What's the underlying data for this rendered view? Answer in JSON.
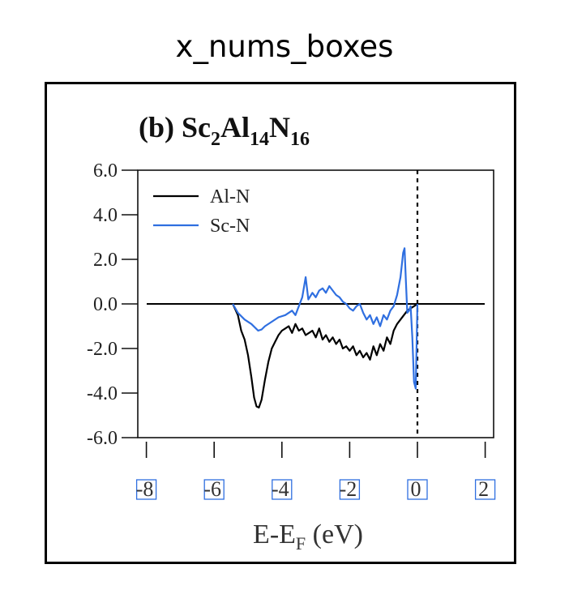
{
  "page_title": "x_nums_boxes",
  "colors": {
    "al_n": "#000000",
    "sc_n": "#2f6fe0",
    "box": "#2f6fe0"
  },
  "chart_data": {
    "type": "line",
    "title": {
      "prefix": "(b) ",
      "parts": [
        {
          "text": "Sc",
          "sub": "2"
        },
        {
          "text": "Al",
          "sub": "14"
        },
        {
          "text": "N",
          "sub": "16"
        }
      ]
    },
    "xlabel": {
      "main": "E-E",
      "sub": "F",
      "unit": " (eV)"
    },
    "ylabel": "",
    "xlim": [
      -8,
      2
    ],
    "ylim": [
      -6,
      6
    ],
    "xticks": [
      "-8",
      "-6",
      "-4",
      "-2",
      "0",
      "2"
    ],
    "yticks": [
      "6.0",
      "4.0",
      "2.0",
      "0.0",
      "-2.0",
      "-4.0",
      "-6.0"
    ],
    "fermi_line_x": 0,
    "zero_line_y": 0,
    "legend_position": "top-left",
    "series": [
      {
        "name": "Al-N",
        "color": "#000000",
        "points": [
          [
            -5.45,
            0.0
          ],
          [
            -5.3,
            -0.5
          ],
          [
            -5.2,
            -1.2
          ],
          [
            -5.1,
            -1.6
          ],
          [
            -5.0,
            -2.3
          ],
          [
            -4.9,
            -3.3
          ],
          [
            -4.82,
            -4.2
          ],
          [
            -4.75,
            -4.6
          ],
          [
            -4.68,
            -4.65
          ],
          [
            -4.6,
            -4.3
          ],
          [
            -4.5,
            -3.4
          ],
          [
            -4.4,
            -2.6
          ],
          [
            -4.3,
            -2.0
          ],
          [
            -4.2,
            -1.7
          ],
          [
            -4.1,
            -1.4
          ],
          [
            -4.0,
            -1.2
          ],
          [
            -3.9,
            -1.1
          ],
          [
            -3.8,
            -1.0
          ],
          [
            -3.7,
            -1.3
          ],
          [
            -3.6,
            -0.9
          ],
          [
            -3.5,
            -1.2
          ],
          [
            -3.4,
            -1.1
          ],
          [
            -3.3,
            -1.4
          ],
          [
            -3.2,
            -1.3
          ],
          [
            -3.1,
            -1.2
          ],
          [
            -3.0,
            -1.5
          ],
          [
            -2.9,
            -1.1
          ],
          [
            -2.8,
            -1.6
          ],
          [
            -2.7,
            -1.4
          ],
          [
            -2.6,
            -1.7
          ],
          [
            -2.5,
            -1.5
          ],
          [
            -2.4,
            -1.8
          ],
          [
            -2.3,
            -1.6
          ],
          [
            -2.2,
            -2.0
          ],
          [
            -2.1,
            -1.9
          ],
          [
            -2.0,
            -2.1
          ],
          [
            -1.9,
            -1.9
          ],
          [
            -1.8,
            -2.3
          ],
          [
            -1.7,
            -2.1
          ],
          [
            -1.6,
            -2.4
          ],
          [
            -1.5,
            -2.2
          ],
          [
            -1.4,
            -2.5
          ],
          [
            -1.3,
            -1.9
          ],
          [
            -1.2,
            -2.3
          ],
          [
            -1.1,
            -1.8
          ],
          [
            -1.0,
            -2.1
          ],
          [
            -0.9,
            -1.5
          ],
          [
            -0.8,
            -1.8
          ],
          [
            -0.7,
            -1.2
          ],
          [
            -0.6,
            -0.9
          ],
          [
            -0.5,
            -0.7
          ],
          [
            -0.4,
            -0.5
          ],
          [
            -0.3,
            -0.3
          ],
          [
            -0.2,
            -0.2
          ],
          [
            -0.1,
            -0.1
          ],
          [
            0.0,
            0.0
          ]
        ]
      },
      {
        "name": "Sc-N",
        "color": "#2f6fe0",
        "points": [
          [
            -5.45,
            0.0
          ],
          [
            -5.3,
            -0.4
          ],
          [
            -5.1,
            -0.7
          ],
          [
            -4.9,
            -0.9
          ],
          [
            -4.7,
            -1.2
          ],
          [
            -4.6,
            -1.15
          ],
          [
            -4.5,
            -1.0
          ],
          [
            -4.3,
            -0.8
          ],
          [
            -4.1,
            -0.6
          ],
          [
            -3.9,
            -0.5
          ],
          [
            -3.7,
            -0.3
          ],
          [
            -3.6,
            -0.5
          ],
          [
            -3.5,
            -0.1
          ],
          [
            -3.4,
            0.3
          ],
          [
            -3.3,
            1.2
          ],
          [
            -3.22,
            0.2
          ],
          [
            -3.1,
            0.5
          ],
          [
            -3.0,
            0.3
          ],
          [
            -2.9,
            0.6
          ],
          [
            -2.8,
            0.7
          ],
          [
            -2.7,
            0.5
          ],
          [
            -2.6,
            0.8
          ],
          [
            -2.5,
            0.6
          ],
          [
            -2.4,
            0.4
          ],
          [
            -2.3,
            0.3
          ],
          [
            -2.2,
            0.1
          ],
          [
            -2.1,
            0.0
          ],
          [
            -2.0,
            -0.2
          ],
          [
            -1.9,
            -0.3
          ],
          [
            -1.8,
            -0.1
          ],
          [
            -1.7,
            0.0
          ],
          [
            -1.6,
            -0.4
          ],
          [
            -1.5,
            -0.7
          ],
          [
            -1.4,
            -0.5
          ],
          [
            -1.3,
            -0.9
          ],
          [
            -1.2,
            -0.6
          ],
          [
            -1.1,
            -1.0
          ],
          [
            -1.0,
            -0.5
          ],
          [
            -0.9,
            -0.7
          ],
          [
            -0.8,
            -0.3
          ],
          [
            -0.7,
            -0.1
          ],
          [
            -0.6,
            0.4
          ],
          [
            -0.5,
            1.2
          ],
          [
            -0.42,
            2.3
          ],
          [
            -0.38,
            2.5
          ],
          [
            -0.34,
            1.0
          ],
          [
            -0.3,
            -0.4
          ],
          [
            -0.25,
            -0.3
          ],
          [
            -0.2,
            -0.1
          ],
          [
            -0.15,
            -1.5
          ],
          [
            -0.1,
            -3.5
          ],
          [
            -0.05,
            -3.8
          ],
          [
            0.0,
            0.0
          ]
        ]
      }
    ]
  }
}
